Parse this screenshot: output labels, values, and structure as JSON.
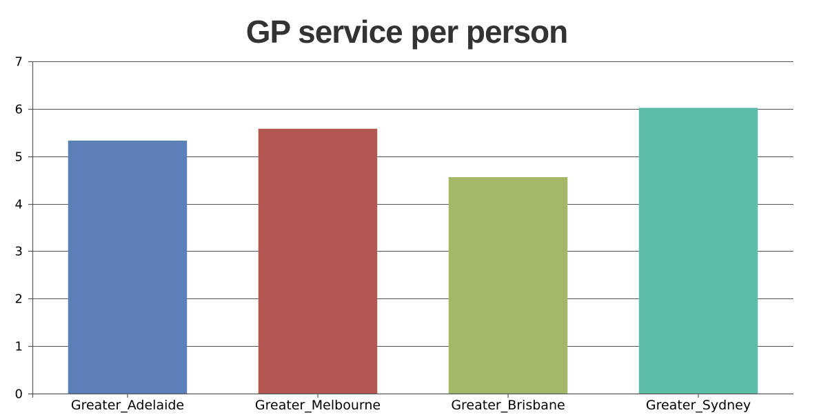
{
  "chart_data": {
    "type": "bar",
    "title": "GP service per person",
    "xlabel": "",
    "ylabel": "",
    "ylim": [
      0,
      7
    ],
    "yticks": [
      0,
      1,
      2,
      3,
      4,
      5,
      6,
      7
    ],
    "grid": true,
    "categories": [
      "Greater_Adelaide",
      "Greater_Melbourne",
      "Greater_Brisbane",
      "Greater_Sydney"
    ],
    "values": [
      5.33,
      5.58,
      4.56,
      6.02
    ],
    "colors": [
      "#5b80b8",
      "#b35753",
      "#a2b866",
      "#5cbda9"
    ]
  }
}
